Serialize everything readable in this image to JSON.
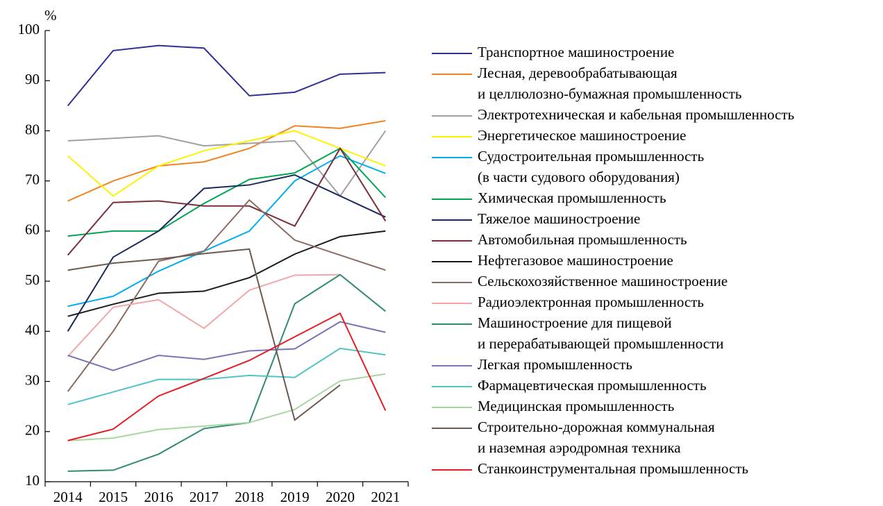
{
  "chart_data": {
    "type": "line",
    "y_label": "%",
    "categories": [
      "2014",
      "2015",
      "2016",
      "2017",
      "2018",
      "2019",
      "2020",
      "2021"
    ],
    "ylim": [
      10,
      100
    ],
    "yticks": [
      10,
      20,
      30,
      40,
      50,
      60,
      70,
      80,
      90,
      100
    ],
    "series": [
      {
        "name": "Транспортное машиностроение",
        "color": "#2e3192",
        "values": [
          85,
          96,
          97,
          96.5,
          87,
          87.7,
          91.3,
          91.6
        ]
      },
      {
        "name": "Лесная, деревообрабатывающая\nи целлюлозно-бумажная промышленность",
        "color": "#f58220",
        "values": [
          66,
          70,
          73,
          73.8,
          76.5,
          81,
          80.5,
          82
        ]
      },
      {
        "name": "Электротехническая и кабельная промышленность",
        "color": "#a0a0a0",
        "values": [
          78,
          78.5,
          79,
          77,
          77.5,
          78,
          67,
          80
        ]
      },
      {
        "name": "Энергетическое машиностроение",
        "color": "#fff200",
        "values": [
          75,
          67,
          73,
          76,
          78,
          80,
          76.5,
          73
        ]
      },
      {
        "name": "Судостроительная промышленность\n(в части судового оборудования)",
        "color": "#00aeef",
        "values": [
          45,
          47,
          52,
          56,
          60,
          70,
          75,
          71.5
        ]
      },
      {
        "name": "Химическая промышленность",
        "color": "#00a651",
        "values": [
          59,
          60,
          60,
          65.5,
          70.3,
          71.6,
          76.5,
          66.7
        ]
      },
      {
        "name": "Тяжелое машиностроение",
        "color": "#1b2a5c",
        "values": [
          40,
          54.8,
          60,
          68.5,
          69.2,
          71.2,
          67,
          62.8
        ]
      },
      {
        "name": "Автомобильная промышленность",
        "color": "#7b2e3b",
        "values": [
          55.2,
          65.7,
          66,
          65,
          65,
          61,
          76.5,
          62
        ]
      },
      {
        "name": "Нефтегазовое машиностроение",
        "color": "#1a1a1a",
        "values": [
          43,
          45.4,
          47.6,
          48,
          50.7,
          55.4,
          58.9,
          60
        ]
      },
      {
        "name": "Сельскохозяйственное машиностроение",
        "color": "#8b6b61",
        "values": [
          28,
          40,
          54,
          56,
          66.2,
          58.2,
          55.2,
          52.2
        ]
      },
      {
        "name": "Радиоэлектронная промышленность",
        "color": "#f4a6a6",
        "values": [
          35,
          44.8,
          46.3,
          40.6,
          48.2,
          51.2,
          51.3,
          null
        ]
      },
      {
        "name": "Машиностроение для пищевой\nи перерабатывающей промышленности",
        "color": "#2e8b74",
        "values": [
          12.1,
          12.3,
          15.5,
          20.6,
          21.8,
          45.5,
          51.3,
          44
        ]
      },
      {
        "name": "Легкая промышленность",
        "color": "#7b73b8",
        "values": [
          35.2,
          32.2,
          35.2,
          34.4,
          36.1,
          36.5,
          41.9,
          39.8
        ]
      },
      {
        "name": "Фармацевтическая промышленность",
        "color": "#4fc3c7",
        "values": [
          25.4,
          27.9,
          30.4,
          30.4,
          31.2,
          30.8,
          36.6,
          35.3
        ]
      },
      {
        "name": "Медицинская промышленность",
        "color": "#a8d5a2",
        "values": [
          18.2,
          18.7,
          20.4,
          21.1,
          21.8,
          24.4,
          30.1,
          31.5
        ]
      },
      {
        "name": "Строительно-дорожная коммунальная\nи наземная аэродромная техника",
        "color": "#6d5a4e",
        "values": [
          52.2,
          53.6,
          54.4,
          55.5,
          56.4,
          22.3,
          29.3,
          null
        ]
      },
      {
        "name": "Станкоинструментальная промышленность",
        "color": "#e31e24",
        "values": [
          18.2,
          20.5,
          27.1,
          30.6,
          34.2,
          38.9,
          43.6,
          24.2
        ]
      }
    ]
  }
}
